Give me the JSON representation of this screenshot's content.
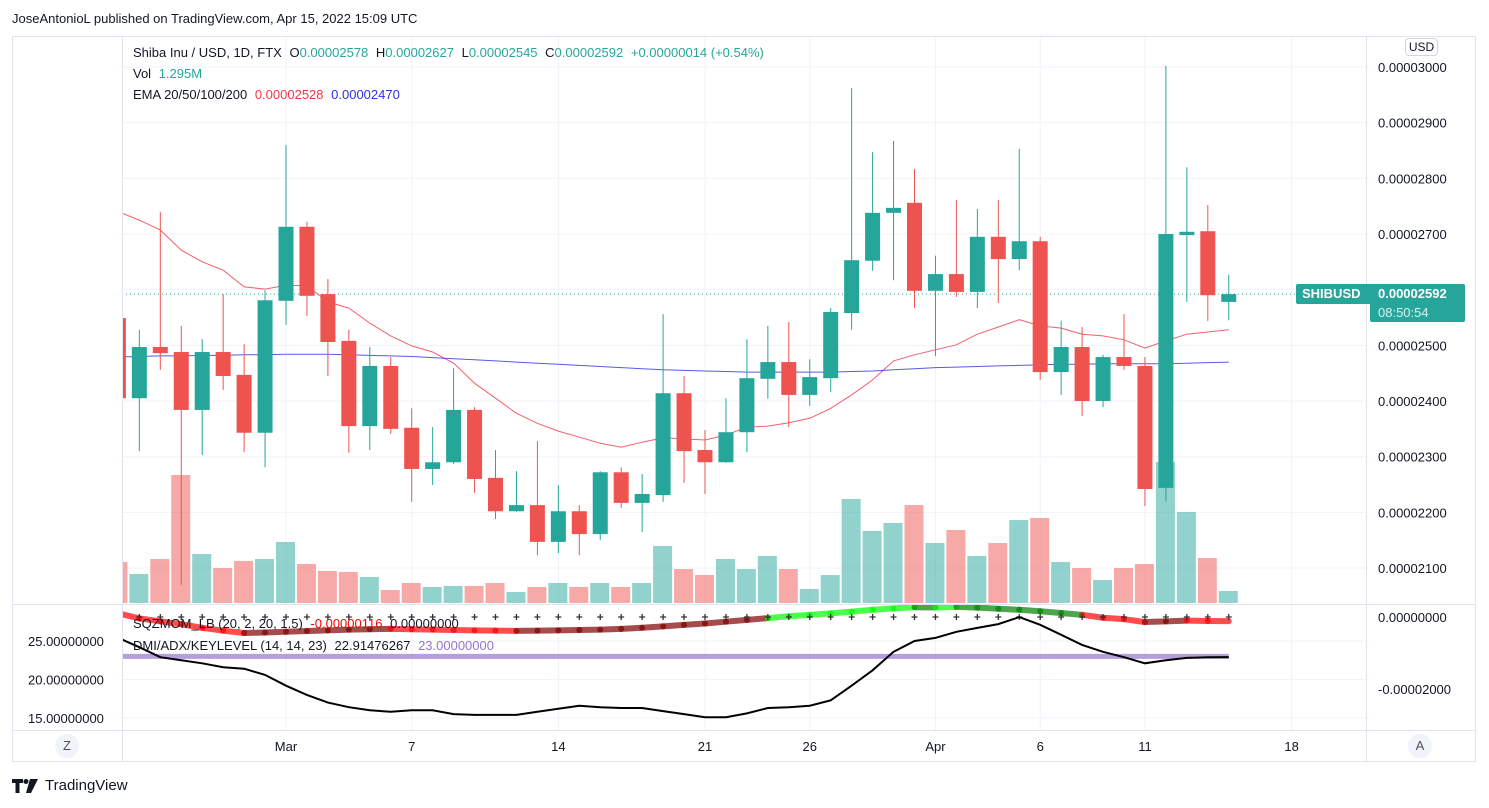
{
  "publisher": "JoseAntonioL published on TradingView.com, Apr 15, 2022 15:09 UTC",
  "legend": {
    "symbol": "Shiba Inu / USD, 1D, FTX",
    "o_label": "O",
    "o": "0.00002578",
    "h_label": "H",
    "h": "0.00002627",
    "l_label": "L",
    "l": "0.00002545",
    "c_label": "C",
    "c": "0.00002592",
    "change": "+0.00000014 (+0.54%)",
    "vol_label": "Vol",
    "vol": "1.295M",
    "ema_label": "EMA 20/50/100/200",
    "ema1": "0.00002528",
    "ema2": "0.00002470",
    "sqz_label": "SQZMOM_LB (20, 2, 20, 1.5)",
    "sqz_val": "-0.00000116",
    "sqz_zero": "0.00000000",
    "dmi_label": "DMI/ADX/KEYLEVEL (14, 14, 23)",
    "adx_val": "22.91476267",
    "key_val": "23.00000000"
  },
  "price_label": {
    "symbol": "SHIBUSD",
    "price": "0.00002592",
    "countdown": "08:50:54"
  },
  "currency_button": "USD",
  "left_axis_button": "Z",
  "right_axis_button": "A",
  "footer_brand": "TradingView",
  "colors": {
    "up": "#26a69a",
    "down": "#ef5350",
    "ema20": "#f23645",
    "ema200": "#3030e0",
    "adx": "#000000",
    "key_level": "#9575cd",
    "sqz_lime": "#00ff00",
    "sqz_green": "#008000",
    "sqz_red": "#ff0000",
    "sqz_maroon": "#800000"
  },
  "chart_data": {
    "type": "candlestick",
    "price_ticks": [
      {
        "value": 3e-05,
        "label": "0.00003000"
      },
      {
        "value": 2.9e-05,
        "label": "0.00002900"
      },
      {
        "value": 2.8e-05,
        "label": "0.00002800"
      },
      {
        "value": 2.7e-05,
        "label": "0.00002700"
      },
      {
        "value": 2.5e-05,
        "label": "0.00002500"
      },
      {
        "value": 2.4e-05,
        "label": "0.00002400"
      },
      {
        "value": 2.3e-05,
        "label": "0.00002300"
      },
      {
        "value": 2.2e-05,
        "label": "0.00002200"
      },
      {
        "value": 2.1e-05,
        "label": "0.00002100"
      }
    ],
    "indicator_left_ticks": [
      {
        "value": 25,
        "label": "25.00000000"
      },
      {
        "value": 20,
        "label": "20.00000000"
      },
      {
        "value": 15,
        "label": "15.00000000"
      }
    ],
    "indicator_right_ticks": [
      {
        "value": 0,
        "label": "0.00000000"
      },
      {
        "value": -2e-05,
        "label": "-0.00002000"
      }
    ],
    "time_axis": [
      {
        "label": "Mar",
        "date": "2022-03-01"
      },
      {
        "label": "7",
        "date": "2022-03-07"
      },
      {
        "label": "14",
        "date": "2022-03-14"
      },
      {
        "label": "21",
        "date": "2022-03-21"
      },
      {
        "label": "26",
        "date": "2022-03-26"
      },
      {
        "label": "Apr",
        "date": "2022-04-01"
      },
      {
        "label": "6",
        "date": "2022-04-06"
      },
      {
        "label": "11",
        "date": "2022-04-11"
      },
      {
        "label": "18",
        "date": "2022-04-18"
      }
    ],
    "candle_fields": [
      "date",
      "open",
      "high",
      "low",
      "close",
      "volume_M"
    ],
    "candles": [
      [
        "2022-02-21",
        2.549e-05,
        2.552e-05,
        2.4e-05,
        2.405e-05,
        4.43
      ],
      [
        "2022-02-22",
        2.405e-05,
        2.528e-05,
        2.31e-05,
        2.497e-05,
        3.13
      ],
      [
        "2022-02-23",
        2.497e-05,
        2.74e-05,
        2.456e-05,
        2.486e-05,
        4.75
      ],
      [
        "2022-02-24",
        2.488e-05,
        2.535e-05,
        2.07e-05,
        2.384e-05,
        13.82
      ],
      [
        "2022-02-25",
        2.384e-05,
        2.511e-05,
        2.303e-05,
        2.488e-05,
        5.29
      ],
      [
        "2022-02-26",
        2.488e-05,
        2.592e-05,
        2.42e-05,
        2.445e-05,
        3.78
      ],
      [
        "2022-02-27",
        2.447e-05,
        2.502e-05,
        2.308e-05,
        2.343e-05,
        4.54
      ],
      [
        "2022-02-28",
        2.343e-05,
        2.599e-05,
        2.281e-05,
        2.581e-05,
        4.75
      ],
      [
        "2022-03-01",
        2.58e-05,
        2.86e-05,
        2.537e-05,
        2.713e-05,
        6.59
      ],
      [
        "2022-03-02",
        2.713e-05,
        2.722e-05,
        2.553e-05,
        2.589e-05,
        4.21
      ],
      [
        "2022-03-03",
        2.592e-05,
        2.619e-05,
        2.445e-05,
        2.506e-05,
        3.46
      ],
      [
        "2022-03-04",
        2.508e-05,
        2.528e-05,
        2.307e-05,
        2.355e-05,
        3.35
      ],
      [
        "2022-03-05",
        2.355e-05,
        2.497e-05,
        2.312e-05,
        2.463e-05,
        2.81
      ],
      [
        "2022-03-06",
        2.463e-05,
        2.479e-05,
        2.341e-05,
        2.35e-05,
        1.4
      ],
      [
        "2022-03-07",
        2.352e-05,
        2.387e-05,
        2.219e-05,
        2.278e-05,
        2.16
      ],
      [
        "2022-03-08",
        2.278e-05,
        2.353e-05,
        2.249e-05,
        2.29e-05,
        1.73
      ],
      [
        "2022-03-09",
        2.29e-05,
        2.459e-05,
        2.287e-05,
        2.384e-05,
        1.84
      ],
      [
        "2022-03-10",
        2.384e-05,
        2.389e-05,
        2.235e-05,
        2.26e-05,
        1.84
      ],
      [
        "2022-03-11",
        2.262e-05,
        2.312e-05,
        2.188e-05,
        2.202e-05,
        2.16
      ],
      [
        "2022-03-12",
        2.202e-05,
        2.274e-05,
        2.201e-05,
        2.213e-05,
        1.19
      ],
      [
        "2022-03-13",
        2.213e-05,
        2.328e-05,
        2.123e-05,
        2.147e-05,
        1.73
      ],
      [
        "2022-03-14",
        2.147e-05,
        2.249e-05,
        2.127e-05,
        2.202e-05,
        2.16
      ],
      [
        "2022-03-15",
        2.202e-05,
        2.213e-05,
        2.123e-05,
        2.161e-05,
        1.73
      ],
      [
        "2022-03-16",
        2.161e-05,
        2.274e-05,
        2.15e-05,
        2.272e-05,
        2.16
      ],
      [
        "2022-03-17",
        2.272e-05,
        2.281e-05,
        2.208e-05,
        2.217e-05,
        1.73
      ],
      [
        "2022-03-18",
        2.217e-05,
        2.269e-05,
        2.165e-05,
        2.233e-05,
        2.16
      ],
      [
        "2022-03-19",
        2.231e-05,
        2.556e-05,
        2.219e-05,
        2.414e-05,
        6.16
      ],
      [
        "2022-03-20",
        2.414e-05,
        2.445e-05,
        2.253e-05,
        2.31e-05,
        3.67
      ],
      [
        "2022-03-21",
        2.312e-05,
        2.348e-05,
        2.233e-05,
        2.29e-05,
        3.02
      ],
      [
        "2022-03-22",
        2.29e-05,
        2.405e-05,
        2.289e-05,
        2.344e-05,
        4.75
      ],
      [
        "2022-03-23",
        2.344e-05,
        2.511e-05,
        2.308e-05,
        2.441e-05,
        3.67
      ],
      [
        "2022-03-24",
        2.44e-05,
        2.535e-05,
        2.404e-05,
        2.47e-05,
        5.08
      ],
      [
        "2022-03-25",
        2.47e-05,
        2.542e-05,
        2.353e-05,
        2.411e-05,
        3.67
      ],
      [
        "2022-03-26",
        2.411e-05,
        2.475e-05,
        2.391e-05,
        2.443e-05,
        1.51
      ],
      [
        "2022-03-27",
        2.441e-05,
        2.567e-05,
        2.416e-05,
        2.56e-05,
        3.02
      ],
      [
        "2022-03-28",
        2.558e-05,
        2.962e-05,
        2.528e-05,
        2.653e-05,
        11.23
      ],
      [
        "2022-03-29",
        2.652e-05,
        2.847e-05,
        2.634e-05,
        2.738e-05,
        7.78
      ],
      [
        "2022-03-30",
        2.738e-05,
        2.867e-05,
        2.617e-05,
        2.747e-05,
        8.64
      ],
      [
        "2022-03-31",
        2.756e-05,
        2.817e-05,
        2.567e-05,
        2.598e-05,
        10.58
      ],
      [
        "2022-04-01",
        2.598e-05,
        2.661e-05,
        2.481e-05,
        2.628e-05,
        6.48
      ],
      [
        "2022-04-02",
        2.628e-05,
        2.761e-05,
        2.587e-05,
        2.596e-05,
        7.88
      ],
      [
        "2022-04-03",
        2.596e-05,
        2.745e-05,
        2.567e-05,
        2.695e-05,
        5.08
      ],
      [
        "2022-04-04",
        2.695e-05,
        2.761e-05,
        2.576e-05,
        2.655e-05,
        6.48
      ],
      [
        "2022-04-05",
        2.655e-05,
        2.853e-05,
        2.635e-05,
        2.687e-05,
        8.96
      ],
      [
        "2022-04-06",
        2.687e-05,
        2.695e-05,
        2.438e-05,
        2.452e-05,
        9.18
      ],
      [
        "2022-04-07",
        2.452e-05,
        2.544e-05,
        2.411e-05,
        2.497e-05,
        4.43
      ],
      [
        "2022-04-08",
        2.497e-05,
        2.533e-05,
        2.373e-05,
        2.4e-05,
        3.78
      ],
      [
        "2022-04-09",
        2.4e-05,
        2.483e-05,
        2.389e-05,
        2.479e-05,
        2.48
      ],
      [
        "2022-04-10",
        2.479e-05,
        2.556e-05,
        2.456e-05,
        2.463e-05,
        3.78
      ],
      [
        "2022-04-11",
        2.463e-05,
        2.479e-05,
        2.211e-05,
        2.242e-05,
        4.21
      ],
      [
        "2022-04-12",
        2.244e-05,
        3.002e-05,
        2.219e-05,
        2.7e-05,
        15.23
      ],
      [
        "2022-04-13",
        2.698e-05,
        2.82e-05,
        2.578e-05,
        2.704e-05,
        9.83
      ],
      [
        "2022-04-14",
        2.705e-05,
        2.752e-05,
        2.544e-05,
        2.59e-05,
        4.86
      ],
      [
        "2022-04-15",
        2.578e-05,
        2.627e-05,
        2.545e-05,
        2.592e-05,
        1.295
      ]
    ],
    "ema20": [
      2.74e-05,
      2.725e-05,
      2.707e-05,
      2.671e-05,
      2.65e-05,
      2.635e-05,
      2.605e-05,
      2.601e-05,
      2.608e-05,
      2.607e-05,
      2.578e-05,
      2.567e-05,
      2.54e-05,
      2.517e-05,
      2.499e-05,
      2.488e-05,
      2.468e-05,
      2.432e-05,
      2.405e-05,
      2.378e-05,
      2.36e-05,
      2.346e-05,
      2.335e-05,
      2.324e-05,
      2.317e-05,
      2.326e-05,
      2.334e-05,
      2.332e-05,
      2.33e-05,
      2.339e-05,
      2.353e-05,
      2.355e-05,
      2.361e-05,
      2.369e-05,
      2.387e-05,
      2.411e-05,
      2.438e-05,
      2.472e-05,
      2.483e-05,
      2.492e-05,
      2.501e-05,
      2.52e-05,
      2.533e-05,
      2.546e-05,
      2.535e-05,
      2.531e-05,
      2.52e-05,
      2.517e-05,
      2.51e-05,
      2.495e-05,
      2.508e-05,
      2.52e-05,
      2.524e-05,
      2.528e-05
    ],
    "ema_second": [
      2.479e-05,
      2.48e-05,
      2.481e-05,
      2.481e-05,
      2.482e-05,
      2.482e-05,
      2.483e-05,
      2.483e-05,
      2.484e-05,
      2.484e-05,
      2.484e-05,
      2.483e-05,
      2.482e-05,
      2.481e-05,
      2.48e-05,
      2.478e-05,
      2.476e-05,
      2.474e-05,
      2.472e-05,
      2.47e-05,
      2.468e-05,
      2.466e-05,
      2.464e-05,
      2.462e-05,
      2.46e-05,
      2.458e-05,
      2.456e-05,
      2.455e-05,
      2.454e-05,
      2.453e-05,
      2.452e-05,
      2.452e-05,
      2.452e-05,
      2.452e-05,
      2.452e-05,
      2.453e-05,
      2.454e-05,
      2.456e-05,
      2.458e-05,
      2.46e-05,
      2.461e-05,
      2.462e-05,
      2.463e-05,
      2.464e-05,
      2.465e-05,
      2.466e-05,
      2.466e-05,
      2.467e-05,
      2.467e-05,
      2.467e-05,
      2.467e-05,
      2.468e-05,
      2.469e-05,
      2.47e-05
    ],
    "sqzmom": [
      1e-06,
      -4e-07,
      -1.2e-06,
      -2e-06,
      -3e-06,
      -3.8e-06,
      -4.45e-06,
      -4.3e-06,
      -4.1e-06,
      -3.9e-06,
      -3.7e-06,
      -3.5e-06,
      -3.4e-06,
      -3.3e-06,
      -3.4e-06,
      -3.5e-06,
      -3.6e-06,
      -3.7e-06,
      -3.8e-06,
      -3.85e-06,
      -3.8e-06,
      -3.7e-06,
      -3.6e-06,
      -3.5e-06,
      -3.3e-06,
      -3e-06,
      -2.6e-06,
      -2.2e-06,
      -1.8e-06,
      -1.3e-06,
      -8e-07,
      -3e-07,
      2e-07,
      6e-07,
      1e-06,
      1.5e-06,
      2e-06,
      2.4e-06,
      2.7e-06,
      2.65e-06,
      2.8e-06,
      2.6e-06,
      2.3e-06,
      2e-06,
      1.6e-06,
      1.1e-06,
      6e-07,
      -2e-07,
      -6e-07,
      -1.4e-06,
      -1.2e-06,
      -1e-06,
      -1.1e-06,
      -1.16e-06
    ],
    "adx": [
      25.4,
      24.2,
      22.9,
      22.5,
      22.1,
      21.6,
      21.4,
      20.6,
      19.2,
      18.0,
      17.0,
      16.4,
      16.0,
      15.8,
      16.0,
      16.0,
      15.5,
      15.4,
      15.4,
      15.4,
      15.8,
      16.2,
      16.6,
      16.4,
      16.3,
      16.3,
      15.9,
      15.5,
      15.1,
      15.1,
      15.6,
      16.3,
      16.4,
      16.6,
      17.3,
      19.2,
      21.2,
      23.6,
      25.0,
      25.4,
      26.2,
      26.7,
      27.2,
      28.1,
      27.1,
      25.8,
      24.5,
      23.6,
      22.9,
      22.1,
      22.5,
      22.8,
      22.9,
      22.91476267
    ],
    "key_level": 23,
    "last_price": 2.592e-05,
    "grid": true
  }
}
